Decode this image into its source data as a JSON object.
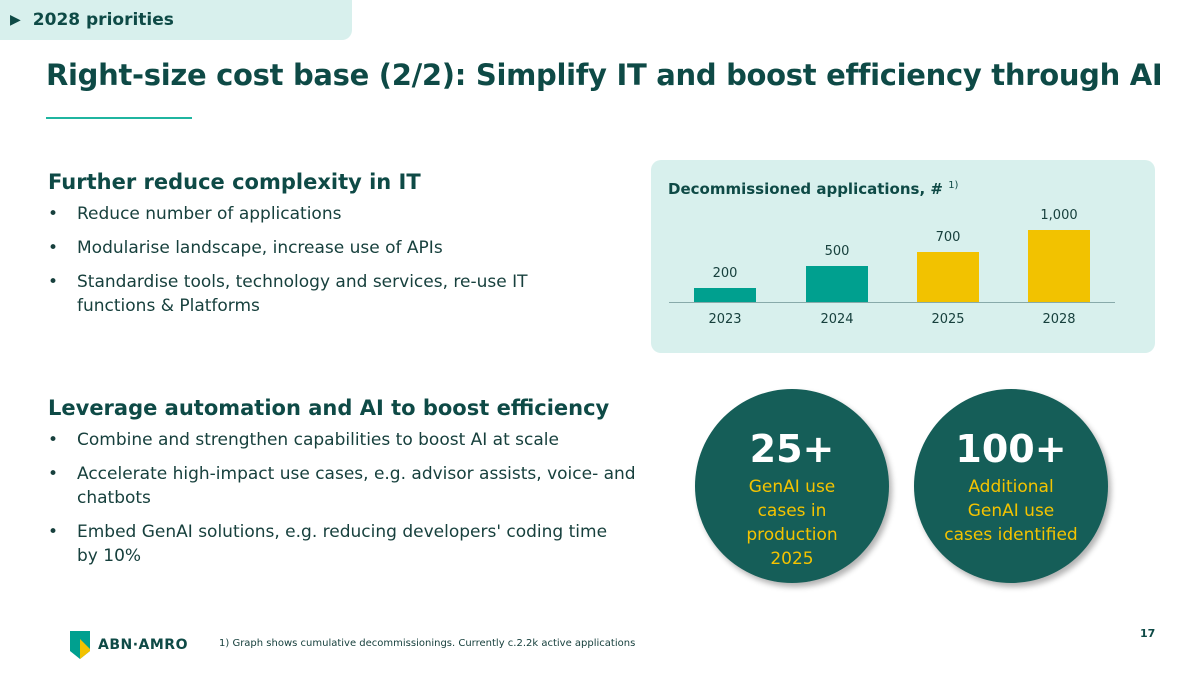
{
  "header": {
    "tag": "2028 priorities",
    "title": "Right-size cost base (2/2): Simplify IT and boost efficiency through AI"
  },
  "section1": {
    "heading": "Further reduce complexity in IT",
    "bullets": [
      "Reduce number of applications",
      "Modularise landscape, increase use of APIs",
      "Standardise tools, technology and services, re-use IT functions & Platforms"
    ]
  },
  "section2": {
    "heading": "Leverage automation and AI to boost efficiency",
    "bullets": [
      "Combine and strengthen capabilities to boost AI at scale",
      "Accelerate high-impact use cases, e.g. advisor assists, voice- and chatbots",
      "Embed GenAI solutions, e.g. reducing developers' coding time by 10%"
    ]
  },
  "chart_data": {
    "type": "bar",
    "title": "Decommissioned applications, #",
    "footnote_ref": "1)",
    "categories": [
      "2023",
      "2024",
      "2025",
      "2028"
    ],
    "values": [
      200,
      500,
      700,
      1000
    ],
    "value_labels": [
      "200",
      "500",
      "700",
      "1,000"
    ],
    "colors": [
      "#00a08f",
      "#00a08f",
      "#f2c200",
      "#f2c200"
    ],
    "ylim": [
      0,
      1000
    ]
  },
  "circles": [
    {
      "big": "25+",
      "small": "GenAI use cases in production 2025"
    },
    {
      "big": "100+",
      "small": "Additional GenAI use cases identified"
    }
  ],
  "footer": {
    "logo": "ABN·AMRO",
    "note": "1) Graph shows cumulative decommissionings. Currently c.2.2k active applications",
    "page": "17"
  }
}
